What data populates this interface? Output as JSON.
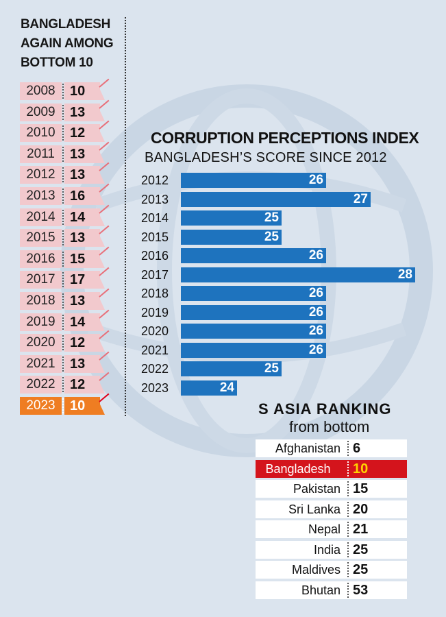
{
  "left_panel": {
    "title_lines": [
      "BANGLADESH",
      "AGAIN AMONG",
      "BOTTOM 10"
    ],
    "rows": [
      {
        "year": "2008",
        "rank": "10",
        "highlight": false
      },
      {
        "year": "2009",
        "rank": "13",
        "highlight": false
      },
      {
        "year": "2010",
        "rank": "12",
        "highlight": false
      },
      {
        "year": "2011",
        "rank": "13",
        "highlight": false
      },
      {
        "year": "2012",
        "rank": "13",
        "highlight": false
      },
      {
        "year": "2013",
        "rank": "16",
        "highlight": false
      },
      {
        "year": "2014",
        "rank": "14",
        "highlight": false
      },
      {
        "year": "2015",
        "rank": "13",
        "highlight": false
      },
      {
        "year": "2016",
        "rank": "15",
        "highlight": false
      },
      {
        "year": "2017",
        "rank": "17",
        "highlight": false
      },
      {
        "year": "2018",
        "rank": "13",
        "highlight": false
      },
      {
        "year": "2019",
        "rank": "14",
        "highlight": false
      },
      {
        "year": "2020",
        "rank": "12",
        "highlight": false
      },
      {
        "year": "2021",
        "rank": "13",
        "highlight": false
      },
      {
        "year": "2022",
        "rank": "12",
        "highlight": false
      },
      {
        "year": "2023",
        "rank": "10",
        "highlight": true
      }
    ]
  },
  "chart_data": {
    "type": "bar",
    "orientation": "horizontal",
    "title": "CORRUPTION PERCEPTIONS INDEX",
    "subtitle": "BANGLADESH’S SCORE SINCE 2012",
    "categories": [
      "2012",
      "2013",
      "2014",
      "2015",
      "2016",
      "2017",
      "2018",
      "2019",
      "2020",
      "2021",
      "2022",
      "2023"
    ],
    "values": [
      26,
      27,
      25,
      25,
      26,
      28,
      26,
      26,
      26,
      26,
      25,
      24
    ],
    "bar_color": "#1e73be",
    "data_labels": true,
    "grid": false
  },
  "s_asia": {
    "title": "S ASIA RANKING",
    "subtitle": "from bottom",
    "rows": [
      {
        "country": "Afghanistan",
        "rank": "6",
        "highlight": false
      },
      {
        "country": "Bangladesh",
        "rank": "10",
        "highlight": true
      },
      {
        "country": "Pakistan",
        "rank": "15",
        "highlight": false
      },
      {
        "country": "Sri Lanka",
        "rank": "20",
        "highlight": false
      },
      {
        "country": "Nepal",
        "rank": "21",
        "highlight": false
      },
      {
        "country": "India",
        "rank": "25",
        "highlight": false
      },
      {
        "country": "Maldives",
        "rank": "25",
        "highlight": false
      },
      {
        "country": "Bhutan",
        "rank": "53",
        "highlight": false
      }
    ]
  },
  "colors": {
    "background": "#dbe4ee",
    "row_pink": "#f2c9cd",
    "highlight_orange": "#ef7d22",
    "highlight_red": "#d4141c",
    "highlight_yellow": "#ffd200"
  }
}
